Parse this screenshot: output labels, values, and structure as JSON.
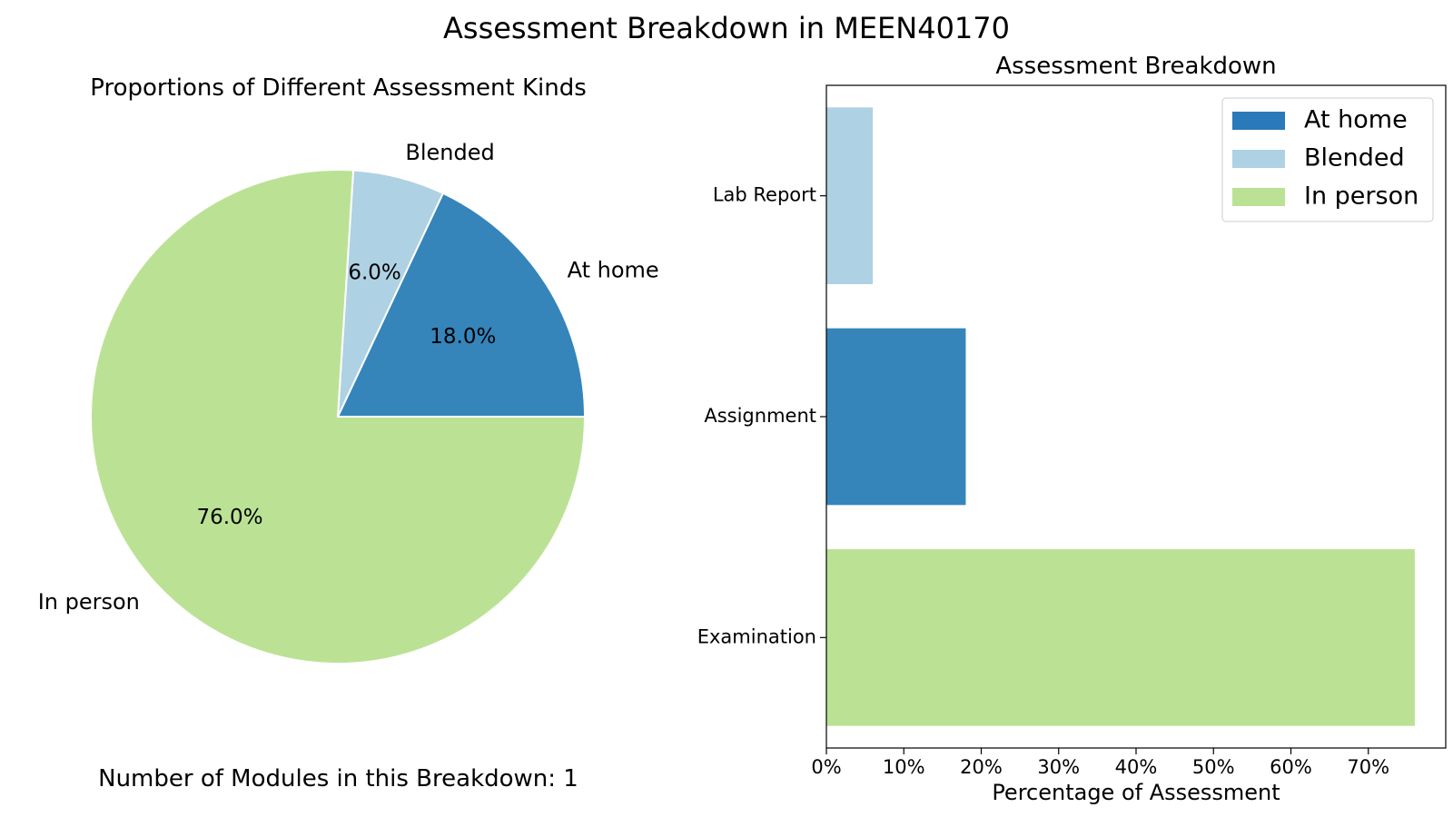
{
  "figure": {
    "suptitle": "Assessment Breakdown in MEEN40170",
    "footer": "Number of Modules in this Breakdown: 1"
  },
  "colors": {
    "at_home": "#3585bb",
    "blended": "#aed1e3",
    "in_person": "#bbe294"
  },
  "chart_data": [
    {
      "type": "pie",
      "title": "Proportions of Different Assessment Kinds",
      "slices": [
        {
          "label": "At home",
          "value": 18.0,
          "pct_label": "18.0%",
          "color": "#3585bb"
        },
        {
          "label": "Blended",
          "value": 6.0,
          "pct_label": "6.0%",
          "color": "#aed1e3"
        },
        {
          "label": "In person",
          "value": 76.0,
          "pct_label": "76.0%",
          "color": "#bbe294"
        }
      ]
    },
    {
      "type": "bar",
      "orientation": "horizontal",
      "title": "Assessment Breakdown",
      "xlabel": "Percentage of Assessment",
      "ylabel": "",
      "xlim": [
        0,
        80
      ],
      "xticks": [
        0,
        10,
        20,
        30,
        40,
        50,
        60,
        70
      ],
      "xtick_labels": [
        "0%",
        "10%",
        "20%",
        "30%",
        "40%",
        "50%",
        "60%",
        "70%"
      ],
      "categories": [
        "Lab Report",
        "Assignment",
        "Examination"
      ],
      "bars": [
        {
          "category": "Lab Report",
          "value": 6,
          "kind": "Blended",
          "color": "#aed1e3"
        },
        {
          "category": "Assignment",
          "value": 18,
          "kind": "At home",
          "color": "#3585bb"
        },
        {
          "category": "Examination",
          "value": 76,
          "kind": "In person",
          "color": "#bbe294"
        }
      ],
      "legend": {
        "placement": "upper right",
        "entries": [
          {
            "label": "At home",
            "color": "#2a7ab9"
          },
          {
            "label": "Blended",
            "color": "#aed1e3"
          },
          {
            "label": "In person",
            "color": "#bbe294"
          }
        ]
      }
    }
  ]
}
